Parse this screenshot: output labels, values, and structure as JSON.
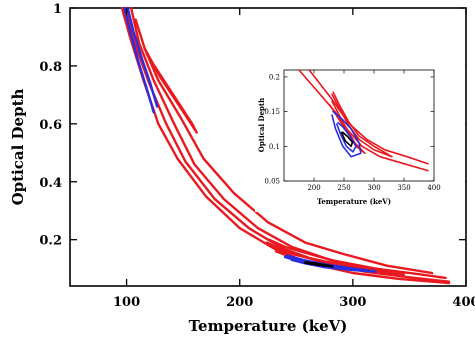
{
  "chart_data": [
    {
      "type": "contour",
      "xlabel": "Temperature (keV)",
      "ylabel": "Optical Depth",
      "xlim": [
        50,
        400
      ],
      "ylim": [
        0.04,
        1.0
      ],
      "xticks": [
        100,
        200,
        300,
        400
      ],
      "yticks": [
        0.2,
        0.4,
        0.6,
        0.8,
        1
      ],
      "ytick_labels": [
        "0.2",
        "0.4",
        "0.6",
        "0.8",
        "1"
      ],
      "colors": {
        "red": "#e8191f",
        "blue": "#2a2de0",
        "black": "#000000"
      },
      "contours": [
        {
          "color": "red",
          "points": [
            [
              96,
              1.0
            ],
            [
              103,
              0.9
            ],
            [
              115,
              0.75
            ],
            [
              128,
              0.6
            ],
            [
              145,
              0.48
            ],
            [
              170,
              0.35
            ],
            [
              200,
              0.24
            ],
            [
              230,
              0.17
            ],
            [
              260,
              0.12
            ],
            [
              300,
              0.085
            ],
            [
              340,
              0.065
            ],
            [
              385,
              0.05
            ]
          ]
        },
        {
          "color": "red",
          "points": [
            [
              100,
              1.0
            ],
            [
              107,
              0.88
            ],
            [
              120,
              0.74
            ],
            [
              135,
              0.6
            ],
            [
              152,
              0.47
            ],
            [
              178,
              0.34
            ],
            [
              208,
              0.24
            ],
            [
              238,
              0.17
            ],
            [
              270,
              0.125
            ],
            [
              310,
              0.09
            ],
            [
              350,
              0.07
            ],
            [
              385,
              0.055
            ]
          ]
        },
        {
          "color": "red",
          "points": [
            [
              104,
              1.0
            ],
            [
              111,
              0.88
            ],
            [
              124,
              0.75
            ],
            [
              142,
              0.6
            ],
            [
              160,
              0.46
            ],
            [
              186,
              0.34
            ],
            [
              216,
              0.24
            ],
            [
              246,
              0.175
            ],
            [
              280,
              0.13
            ],
            [
              320,
              0.1
            ],
            [
              360,
              0.08
            ],
            [
              382,
              0.068
            ]
          ]
        },
        {
          "color": "red",
          "points": [
            [
              108,
              0.96
            ],
            [
              116,
              0.86
            ],
            [
              128,
              0.75
            ],
            [
              148,
              0.62
            ],
            [
              168,
              0.48
            ],
            [
              195,
              0.36
            ],
            [
              225,
              0.26
            ],
            [
              258,
              0.19
            ],
            [
              292,
              0.15
            ],
            [
              330,
              0.11
            ],
            [
              370,
              0.085
            ]
          ]
        },
        {
          "color": "red",
          "points": [
            [
              224,
              0.19
            ],
            [
              240,
              0.16
            ],
            [
              262,
              0.135
            ],
            [
              290,
              0.11
            ],
            [
              320,
              0.09
            ],
            [
              345,
              0.08
            ],
            [
              320,
              0.095
            ],
            [
              290,
              0.12
            ],
            [
              262,
              0.15
            ],
            [
              240,
              0.175
            ],
            [
              226,
              0.2
            ]
          ]
        },
        {
          "color": "red",
          "points": [
            [
              232,
              0.16
            ],
            [
              252,
              0.13
            ],
            [
              275,
              0.115
            ],
            [
              305,
              0.095
            ],
            [
              330,
              0.085
            ],
            [
              305,
              0.105
            ],
            [
              275,
              0.125
            ],
            [
              252,
              0.145
            ],
            [
              234,
              0.165
            ]
          ]
        },
        {
          "color": "red",
          "points": [
            [
              118,
              0.84
            ],
            [
              138,
              0.72
            ],
            [
              158,
              0.6
            ],
            [
              162,
              0.57
            ],
            [
              152,
              0.63
            ],
            [
              130,
              0.76
            ],
            [
              116,
              0.86
            ]
          ]
        },
        {
          "color": "blue",
          "points": [
            [
              98,
              1.0
            ],
            [
              103,
              0.92
            ],
            [
              110,
              0.82
            ],
            [
              118,
              0.72
            ],
            [
              124,
              0.64
            ]
          ]
        },
        {
          "color": "blue",
          "points": [
            [
              101,
              1.0
            ],
            [
              106,
              0.92
            ],
            [
              114,
              0.82
            ],
            [
              121,
              0.74
            ],
            [
              127,
              0.66
            ]
          ]
        },
        {
          "color": "blue",
          "points": [
            [
              240,
              0.14
            ],
            [
              256,
              0.12
            ],
            [
              275,
              0.105
            ],
            [
              300,
              0.095
            ],
            [
              320,
              0.09
            ],
            [
              300,
              0.1
            ],
            [
              275,
              0.115
            ],
            [
              256,
              0.13
            ],
            [
              242,
              0.145
            ]
          ]
        },
        {
          "color": "blue",
          "points": [
            [
              246,
              0.13
            ],
            [
              262,
              0.115
            ],
            [
              285,
              0.102
            ],
            [
              308,
              0.095
            ],
            [
              285,
              0.108
            ],
            [
              262,
              0.122
            ],
            [
              248,
              0.133
            ]
          ]
        },
        {
          "color": "black",
          "points": [
            [
              258,
              0.12
            ],
            [
              270,
              0.113
            ],
            [
              282,
              0.108
            ],
            [
              270,
              0.116
            ],
            [
              258,
              0.122
            ]
          ]
        }
      ]
    },
    {
      "type": "contour",
      "inset": true,
      "xlabel": "Temperature (keV)",
      "ylabel": "Optical Depth",
      "xlim": [
        150,
        400
      ],
      "ylim": [
        0.05,
        0.21
      ],
      "xticks": [
        200,
        250,
        300,
        350,
        400
      ],
      "yticks": [
        0.05,
        0.1,
        0.15,
        0.2
      ],
      "ytick_labels": [
        "0.05",
        "0.1",
        "0.15",
        "0.2"
      ],
      "contours": [
        {
          "color": "red",
          "points": [
            [
              175,
              0.21
            ],
            [
              195,
              0.19
            ],
            [
              215,
              0.17
            ],
            [
              235,
              0.15
            ],
            [
              255,
              0.125
            ],
            [
              280,
              0.1
            ],
            [
              310,
              0.085
            ],
            [
              350,
              0.075
            ],
            [
              390,
              0.065
            ]
          ]
        },
        {
          "color": "red",
          "points": [
            [
              192,
              0.21
            ],
            [
              210,
              0.19
            ],
            [
              228,
              0.17
            ],
            [
              244,
              0.15
            ],
            [
              262,
              0.13
            ],
            [
              288,
              0.11
            ],
            [
              318,
              0.095
            ],
            [
              355,
              0.085
            ],
            [
              390,
              0.075
            ]
          ]
        },
        {
          "color": "red",
          "points": [
            [
              230,
              0.175
            ],
            [
              242,
              0.155
            ],
            [
              258,
              0.13
            ],
            [
              275,
              0.11
            ],
            [
              300,
              0.095
            ],
            [
              330,
              0.085
            ],
            [
              300,
              0.1
            ],
            [
              275,
              0.115
            ],
            [
              258,
              0.135
            ],
            [
              242,
              0.16
            ],
            [
              232,
              0.178
            ]
          ]
        },
        {
          "color": "red",
          "points": [
            [
              226,
              0.16
            ],
            [
              248,
              0.13
            ],
            [
              270,
              0.1
            ],
            [
              285,
              0.09
            ],
            [
              268,
              0.105
            ],
            [
              248,
              0.135
            ],
            [
              230,
              0.165
            ]
          ]
        },
        {
          "color": "blue",
          "points": [
            [
              230,
              0.145
            ],
            [
              236,
              0.125
            ],
            [
              248,
              0.1
            ],
            [
              262,
              0.085
            ],
            [
              278,
              0.09
            ],
            [
              275,
              0.105
            ],
            [
              262,
              0.125
            ],
            [
              246,
              0.14
            ],
            [
              232,
              0.15
            ]
          ]
        },
        {
          "color": "blue",
          "points": [
            [
              238,
              0.132
            ],
            [
              244,
              0.118
            ],
            [
              254,
              0.1
            ],
            [
              265,
              0.092
            ],
            [
              270,
              0.1
            ],
            [
              260,
              0.115
            ],
            [
              248,
              0.128
            ],
            [
              240,
              0.134
            ]
          ]
        },
        {
          "color": "black",
          "points": [
            [
              246,
              0.12
            ],
            [
              252,
              0.108
            ],
            [
              262,
              0.1
            ],
            [
              264,
              0.106
            ],
            [
              256,
              0.114
            ],
            [
              248,
              0.12
            ]
          ]
        }
      ]
    }
  ]
}
